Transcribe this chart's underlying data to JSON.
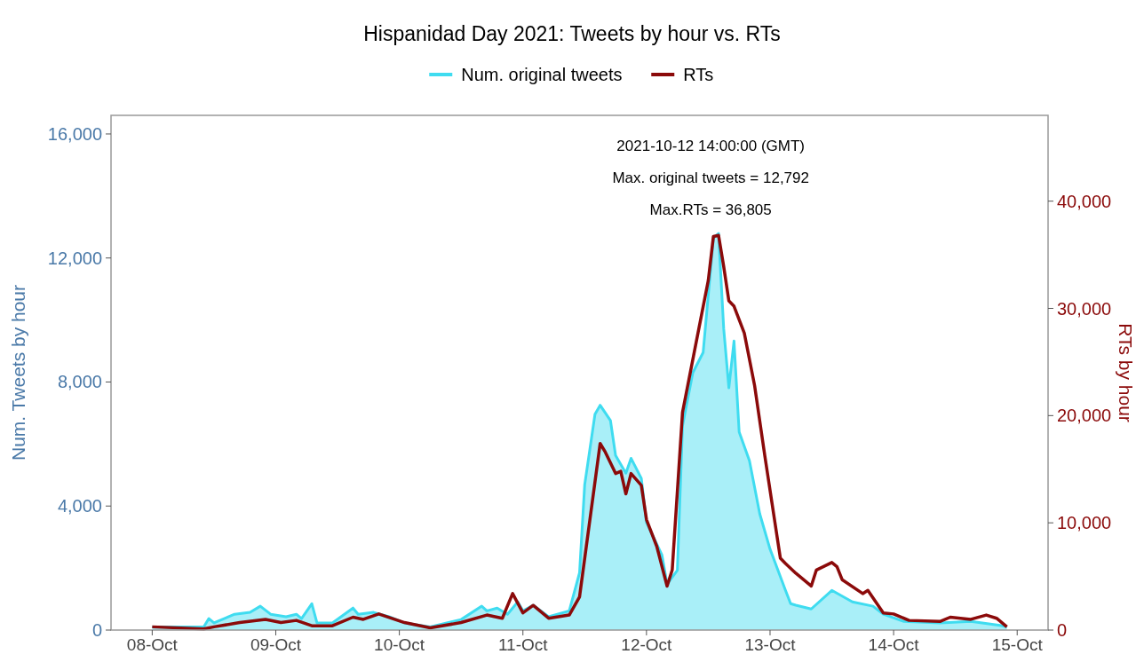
{
  "chart_data": {
    "type": "area",
    "title": "Hispanidad Day 2021: Tweets by hour vs. RTs",
    "ylabel": "Num. Tweets by hour",
    "y2label": "RTs by hour",
    "annotations": [
      "2021-10-12 14:00:00 (GMT)",
      "Max. original tweets = 12,792",
      "Max.RTs = 36,805"
    ],
    "legend": "top",
    "grid": false,
    "xlim": [
      "2021-10-07T16:00",
      "2021-10-15T06:00"
    ],
    "xticks": [
      {
        "value": "2021-10-08",
        "label": "08-Oct"
      },
      {
        "value": "2021-10-09",
        "label": "09-Oct"
      },
      {
        "value": "2021-10-10",
        "label": "10-Oct"
      },
      {
        "value": "2021-10-11",
        "label": "11-Oct"
      },
      {
        "value": "2021-10-12",
        "label": "12-Oct"
      },
      {
        "value": "2021-10-13",
        "label": "13-Oct"
      },
      {
        "value": "2021-10-14",
        "label": "14-Oct"
      },
      {
        "value": "2021-10-15",
        "label": "15-Oct"
      }
    ],
    "ylim": [
      0,
      16600
    ],
    "yticks": [
      0,
      {
        "value": 4000,
        "label": "4,000"
      },
      {
        "value": 8000,
        "label": "8,000"
      },
      {
        "value": 12000,
        "label": "12,000"
      },
      {
        "value": 16000,
        "label": "16,000"
      }
    ],
    "y2lim": [
      0,
      48000
    ],
    "y2ticks": [
      0,
      {
        "value": 10000,
        "label": "10,000"
      },
      {
        "value": 20000,
        "label": "20,000"
      },
      {
        "value": 30000,
        "label": "30,000"
      },
      {
        "value": 40000,
        "label": "40,000"
      }
    ],
    "series": [
      {
        "name": "Num. original tweets",
        "color": "#3fdcf0",
        "x": [
          "2021-10-08T00:00",
          "2021-10-08T10:00",
          "2021-10-08T11:00",
          "2021-10-08T12:00",
          "2021-10-08T16:00",
          "2021-10-08T19:00",
          "2021-10-08T21:00",
          "2021-10-08T23:00",
          "2021-10-09T02:00",
          "2021-10-09T04:00",
          "2021-10-09T05:00",
          "2021-10-09T07:00",
          "2021-10-09T08:00",
          "2021-10-09T11:00",
          "2021-10-09T15:00",
          "2021-10-09T16:00",
          "2021-10-09T19:00",
          "2021-10-09T22:00",
          "2021-10-10T01:00",
          "2021-10-10T06:00",
          "2021-10-10T12:00",
          "2021-10-10T16:00",
          "2021-10-10T17:00",
          "2021-10-10T19:00",
          "2021-10-10T21:00",
          "2021-10-10T23:00",
          "2021-10-11T00:00",
          "2021-10-11T02:00",
          "2021-10-11T05:00",
          "2021-10-11T09:00",
          "2021-10-11T11:00",
          "2021-10-11T12:00",
          "2021-10-11T14:00",
          "2021-10-11T15:00",
          "2021-10-11T17:00",
          "2021-10-11T18:00",
          "2021-10-11T20:00",
          "2021-10-11T21:00",
          "2021-10-11T23:00",
          "2021-10-12T00:00",
          "2021-10-12T03:00",
          "2021-10-12T04:00",
          "2021-10-12T06:00",
          "2021-10-12T07:00",
          "2021-10-12T09:00",
          "2021-10-12T11:00",
          "2021-10-12T13:00",
          "2021-10-12T14:00",
          "2021-10-12T15:00",
          "2021-10-12T16:00",
          "2021-10-12T17:00",
          "2021-10-12T18:00",
          "2021-10-12T20:00",
          "2021-10-12T22:00",
          "2021-10-13T00:00",
          "2021-10-13T03:00",
          "2021-10-13T04:00",
          "2021-10-13T05:00",
          "2021-10-13T08:00",
          "2021-10-13T12:00",
          "2021-10-13T16:00",
          "2021-10-13T20:00",
          "2021-10-13T22:00",
          "2021-10-14T02:00",
          "2021-10-14T09:00",
          "2021-10-14T15:00",
          "2021-10-14T21:00",
          "2021-10-14T22:00"
        ],
        "values": [
          100,
          100,
          370,
          230,
          510,
          570,
          770,
          510,
          430,
          510,
          370,
          850,
          230,
          230,
          710,
          510,
          570,
          430,
          230,
          100,
          340,
          770,
          620,
          710,
          510,
          910,
          620,
          800,
          430,
          620,
          1850,
          4690,
          6960,
          7250,
          6760,
          5630,
          5060,
          5540,
          4890,
          3470,
          2420,
          1480,
          1930,
          6590,
          8300,
          8950,
          12650,
          12792,
          9720,
          7810,
          9320,
          6390,
          5460,
          3750,
          2610,
          1280,
          850,
          800,
          680,
          1280,
          910,
          770,
          510,
          280,
          230,
          280,
          140,
          100
        ]
      },
      {
        "name": "RTs",
        "type": "line",
        "axis": "y2",
        "color": "#8b0a0a",
        "x": [
          "2021-10-08T00:00",
          "2021-10-08T10:00",
          "2021-10-08T12:00",
          "2021-10-08T17:00",
          "2021-10-08T22:00",
          "2021-10-09T01:00",
          "2021-10-09T04:00",
          "2021-10-09T07:00",
          "2021-10-09T11:00",
          "2021-10-09T15:00",
          "2021-10-09T17:00",
          "2021-10-09T20:00",
          "2021-10-10T01:00",
          "2021-10-10T06:00",
          "2021-10-10T12:00",
          "2021-10-10T17:00",
          "2021-10-10T20:00",
          "2021-10-10T22:00",
          "2021-10-11T00:00",
          "2021-10-11T02:00",
          "2021-10-11T05:00",
          "2021-10-11T09:00",
          "2021-10-11T11:00",
          "2021-10-11T15:00",
          "2021-10-11T16:00",
          "2021-10-11T18:00",
          "2021-10-11T19:00",
          "2021-10-11T20:00",
          "2021-10-11T21:00",
          "2021-10-11T23:00",
          "2021-10-12T00:00",
          "2021-10-12T02:00",
          "2021-10-12T04:00",
          "2021-10-12T05:00",
          "2021-10-12T07:00",
          "2021-10-12T10:00",
          "2021-10-12T12:00",
          "2021-10-12T13:00",
          "2021-10-12T14:00",
          "2021-10-12T15:00",
          "2021-10-12T16:00",
          "2021-10-12T17:00",
          "2021-10-12T19:00",
          "2021-10-12T21:00",
          "2021-10-12T23:00",
          "2021-10-13T02:00",
          "2021-10-13T03:00",
          "2021-10-13T05:00",
          "2021-10-13T08:00",
          "2021-10-13T09:00",
          "2021-10-13T12:00",
          "2021-10-13T13:00",
          "2021-10-13T14:00",
          "2021-10-13T18:00",
          "2021-10-13T19:00",
          "2021-10-13T22:00",
          "2021-10-14T00:00",
          "2021-10-14T03:00",
          "2021-10-14T09:00",
          "2021-10-14T11:00",
          "2021-10-14T15:00",
          "2021-10-14T18:00",
          "2021-10-14T20:00",
          "2021-10-14T22:00"
        ],
        "values": [
          300,
          100,
          300,
          700,
          1000,
          700,
          900,
          400,
          400,
          1200,
          1000,
          1500,
          700,
          200,
          700,
          1400,
          1100,
          3400,
          1600,
          2300,
          1100,
          1400,
          3100,
          17400,
          16600,
          14600,
          14800,
          12700,
          14600,
          13500,
          10300,
          7800,
          4100,
          5600,
          20300,
          27700,
          32600,
          36700,
          36805,
          33900,
          30700,
          30200,
          27700,
          22800,
          16200,
          6700,
          6200,
          5300,
          4100,
          5600,
          6300,
          5900,
          4700,
          3400,
          3700,
          1600,
          1500,
          900,
          800,
          1200,
          1000,
          1400,
          1100,
          300
        ]
      }
    ]
  }
}
